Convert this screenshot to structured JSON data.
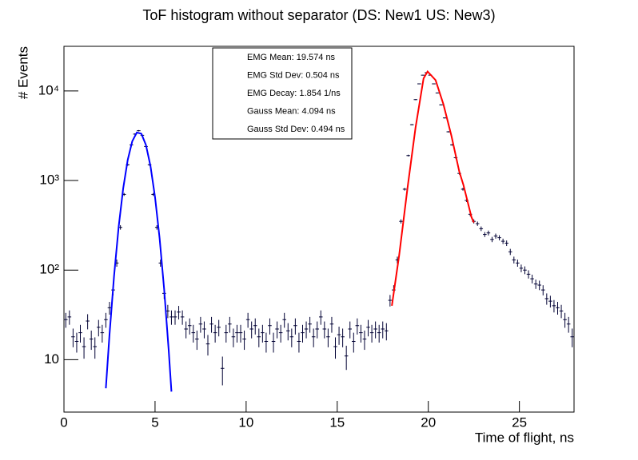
{
  "chart_data": {
    "type": "histogram",
    "title": "ToF histogram without separator (DS: New1 US: New3)",
    "x_label": "Time of flight, ns",
    "y_label": "# Events",
    "log_y": true,
    "color": "#000033",
    "xlim": [
      0,
      28
    ],
    "xticks": [
      0,
      5,
      10,
      15,
      20,
      25
    ],
    "ylim": [
      2.6,
      31500
    ],
    "yticks": [
      10,
      {
        "value": 100,
        "label": "10²"
      },
      {
        "value": 1000,
        "label": "10³"
      },
      {
        "value": 10000,
        "label": "10⁴"
      }
    ],
    "bins": [
      0,
      0.2,
      0.4,
      0.6,
      0.8,
      1,
      1.2,
      1.4,
      1.6,
      1.8,
      2,
      2.2,
      2.4,
      2.6,
      2.8,
      3,
      3.2,
      3.4,
      3.6,
      3.8,
      4,
      4.2,
      4.4,
      4.6,
      4.8,
      5,
      5.2,
      5.4,
      5.6,
      5.8,
      6,
      6.2,
      6.4,
      6.6,
      6.8,
      7,
      7.2,
      7.4,
      7.6,
      7.8,
      8,
      8.2,
      8.4,
      8.6,
      8.8,
      9,
      9.2,
      9.4,
      9.6,
      9.8,
      10,
      10.2,
      10.4,
      10.6,
      10.8,
      11,
      11.2,
      11.4,
      11.6,
      11.8,
      12,
      12.2,
      12.4,
      12.6,
      12.8,
      13,
      13.2,
      13.4,
      13.6,
      13.8,
      14,
      14.2,
      14.4,
      14.6,
      14.8,
      15,
      15.2,
      15.4,
      15.6,
      15.8,
      16,
      16.2,
      16.4,
      16.6,
      16.8,
      17,
      17.2,
      17.4,
      17.6,
      17.8,
      18,
      18.2,
      18.4,
      18.6,
      18.8,
      19,
      19.2,
      19.4,
      19.6,
      19.8,
      20,
      20.2,
      20.4,
      20.6,
      20.8,
      21,
      21.2,
      21.4,
      21.6,
      21.8,
      22,
      22.2,
      22.4,
      22.6,
      22.8,
      23,
      23.2,
      23.4,
      23.6,
      23.8,
      24,
      24.2,
      24.4,
      24.6,
      24.8,
      25,
      25.2,
      25.4,
      25.6,
      25.8,
      26,
      26.2,
      26.4,
      26.6,
      26.8,
      27,
      27.2,
      27.4,
      27.6,
      27.8,
      28
    ],
    "values": [
      28,
      30,
      18,
      16,
      20,
      14,
      27,
      17,
      14,
      23,
      20,
      28,
      38,
      60,
      120,
      300,
      700,
      1500,
      2500,
      3300,
      3600,
      3200,
      2400,
      1500,
      700,
      300,
      120,
      55,
      35,
      30,
      30,
      34,
      30,
      22,
      24,
      20,
      17,
      25,
      22,
      15,
      25,
      20,
      23,
      8,
      20,
      25,
      18,
      20,
      20,
      17,
      28,
      22,
      24,
      18,
      20,
      16,
      24,
      16,
      22,
      20,
      28,
      21,
      18,
      24,
      16,
      20,
      22,
      25,
      18,
      22,
      30,
      22,
      18,
      25,
      14,
      19,
      18,
      11,
      22,
      16,
      24,
      20,
      17,
      23,
      20,
      22,
      20,
      22,
      21,
      46,
      60,
      130,
      350,
      800,
      1900,
      4200,
      8000,
      12000,
      15000,
      16000,
      15000,
      12000,
      9500,
      7000,
      5000,
      3500,
      2500,
      1800,
      1200,
      800,
      600,
      420,
      350,
      330,
      290,
      250,
      260,
      220,
      240,
      230,
      210,
      200,
      160,
      130,
      120,
      105,
      100,
      90,
      80,
      70,
      68,
      60,
      48,
      45,
      40,
      38,
      35,
      28,
      25,
      18
    ],
    "fits": [
      {
        "color": "#0000ff",
        "x": [
          2.3,
          2.5,
          2.75,
          3,
          3.25,
          3.5,
          3.75,
          4,
          4.25,
          4.5,
          4.75,
          5,
          5.25,
          5.5,
          5.75,
          5.9
        ],
        "values": [
          4.8,
          19,
          86,
          301,
          813,
          1699,
          2748,
          3437,
          3330,
          2496,
          1449,
          651,
          227,
          61,
          12.7,
          4.4
        ]
      },
      {
        "color": "#ff0000",
        "x": [
          18,
          18.4,
          18.86,
          19.3,
          19.74,
          19.96,
          20.4,
          20.83,
          21.27,
          21.7,
          21.93,
          22.37,
          22.5
        ],
        "values": [
          40,
          146,
          830,
          3900,
          13800,
          16500,
          13200,
          7100,
          3150,
          1260,
          890,
          390,
          340
        ]
      }
    ],
    "stats": [
      "EMG Mean: 19.574 ns",
      "EMG Std Dev: 0.504 ns",
      "EMG Decay: 1.854 1/ns",
      "Gauss Mean: 4.094 ns",
      "Gauss Std Dev: 0.494 ns"
    ]
  }
}
